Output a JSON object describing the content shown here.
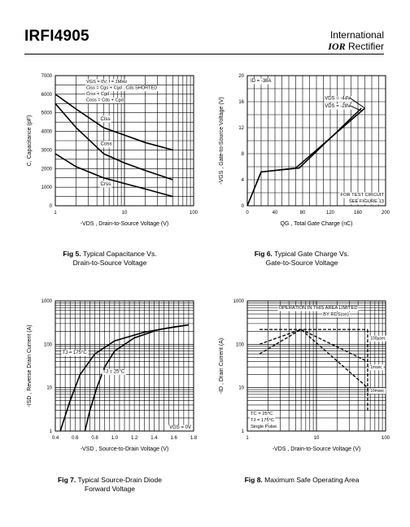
{
  "header": {
    "part_number": "IRFI4905",
    "brand_line1": "International",
    "brand_logo": "IOR",
    "brand_line2": "Rectifier"
  },
  "figures": [
    {
      "num": "Fig 5.",
      "title_l1": "Typical Capacitance Vs.",
      "title_l2": "Drain-to-Source Voltage"
    },
    {
      "num": "Fig 6.",
      "title_l1": "Typical Gate Charge Vs.",
      "title_l2": "Gate-to-Source Voltage"
    },
    {
      "num": "Fig 7.",
      "title_l1": "Typical Source-Drain Diode",
      "title_l2": "Forward Voltage"
    },
    {
      "num": "Fig 8.",
      "title_l1": "Maximum Safe Operating Area",
      "title_l2": ""
    }
  ],
  "chart_data": [
    {
      "type": "line",
      "xscale": "log",
      "xlim": [
        1,
        100
      ],
      "ylim": [
        0,
        7000
      ],
      "xticks": [
        "1",
        "10",
        "100"
      ],
      "yticks": [
        "0",
        "1000",
        "2000",
        "3000",
        "4000",
        "5000",
        "6000",
        "7000"
      ],
      "xlabel": "-VDS , Drain-to-Source Voltage (V)",
      "ylabel": "C, Capacitance (pF)",
      "annotations": [
        "VGS = 0V,        f = 1MHz",
        "Ciss  = Cgs + Cgd ,  Cds  SHORTED",
        "Crss  = Cgd",
        "Coss  = Cds + Cgd"
      ],
      "series": [
        {
          "name": "Ciss",
          "x": [
            1,
            2,
            5,
            10,
            20,
            50
          ],
          "y": [
            6000,
            5200,
            4200,
            3800,
            3400,
            3000
          ]
        },
        {
          "name": "Coss",
          "x": [
            1,
            2,
            5,
            10,
            20,
            50
          ],
          "y": [
            5500,
            4200,
            2800,
            2300,
            1900,
            1400
          ]
        },
        {
          "name": "Crss",
          "x": [
            1,
            2,
            5,
            10,
            20,
            50
          ],
          "y": [
            2800,
            2100,
            1500,
            1200,
            900,
            500
          ]
        }
      ]
    },
    {
      "type": "line",
      "xlim": [
        0,
        200
      ],
      "ylim": [
        0,
        20
      ],
      "xticks": [
        "0",
        "40",
        "80",
        "120",
        "160",
        "200"
      ],
      "yticks": [
        "0",
        "4",
        "8",
        "12",
        "16",
        "20"
      ],
      "xlabel": "QG , Total Gate Charge (nC)",
      "ylabel": "-VGS , Gate-to-Source Voltage (V)",
      "annotations": [
        "ID = -38A",
        "VDS = -44V",
        "VDS = -28V",
        "FOR TEST CIRCUIT",
        "SEE FIGURE 13"
      ],
      "series": [
        {
          "name": "VDS = -44V",
          "x": [
            0,
            20,
            70,
            170
          ],
          "y": [
            0,
            5.2,
            5.8,
            15
          ]
        },
        {
          "name": "VDS = -28V",
          "x": [
            0,
            20,
            75,
            165
          ],
          "y": [
            0,
            5.2,
            5.8,
            15
          ]
        }
      ]
    },
    {
      "type": "line",
      "xlim": [
        0.4,
        1.8
      ],
      "yscale": "log",
      "ylim": [
        1,
        1000
      ],
      "xticks": [
        "0.4",
        "0.6",
        "0.8",
        "1.0",
        "1.2",
        "1.4",
        "1.6",
        "1.8"
      ],
      "yticks": [
        "1",
        "10",
        "100",
        "1000"
      ],
      "xlabel": "-VSD , Source-to-Drain Voltage (V)",
      "ylabel": "-ISD , Reverse Drain Current (A)",
      "annotations": [
        "TJ = 175°C",
        "TJ = 25°C",
        "VGS = 0V"
      ],
      "series": [
        {
          "name": "TJ = 175°C",
          "x": [
            0.45,
            0.55,
            0.65,
            0.8,
            1.0,
            1.3,
            1.6,
            1.75
          ],
          "y": [
            1,
            5,
            20,
            60,
            120,
            190,
            250,
            280
          ]
        },
        {
          "name": "TJ = 25°C",
          "x": [
            0.7,
            0.75,
            0.82,
            0.9,
            1.0,
            1.2,
            1.45,
            1.75
          ],
          "y": [
            1,
            3,
            10,
            30,
            70,
            140,
            220,
            280
          ]
        }
      ]
    },
    {
      "type": "line",
      "xscale": "log",
      "xlim": [
        1,
        100
      ],
      "yscale": "log",
      "ylim": [
        1,
        1000
      ],
      "xticks": [
        "1",
        "10",
        "100"
      ],
      "yticks": [
        "1",
        "10",
        "100",
        "1000"
      ],
      "xlabel": "-VDS , Drain-to-Source Voltage (V)",
      "ylabel": "-ID , Drain Current (A)",
      "annotations": [
        "OPERATION IN THIS AREA LIMITED",
        "BY RDS(on)",
        "TC = 25°C",
        "TJ = 175°C",
        "Single Pulse"
      ],
      "series": [
        {
          "name": "100µsec",
          "x": [
            1.5,
            5,
            55
          ],
          "y": [
            220,
            220,
            220
          ]
        },
        {
          "name": "1msec",
          "x": [
            1.5,
            6,
            55
          ],
          "y": [
            100,
            220,
            40
          ]
        },
        {
          "name": "10msec",
          "x": [
            1.5,
            6,
            55
          ],
          "y": [
            60,
            220,
            10
          ]
        }
      ],
      "curve_labels": [
        "100µsec",
        "1msec",
        "10msec"
      ]
    }
  ]
}
